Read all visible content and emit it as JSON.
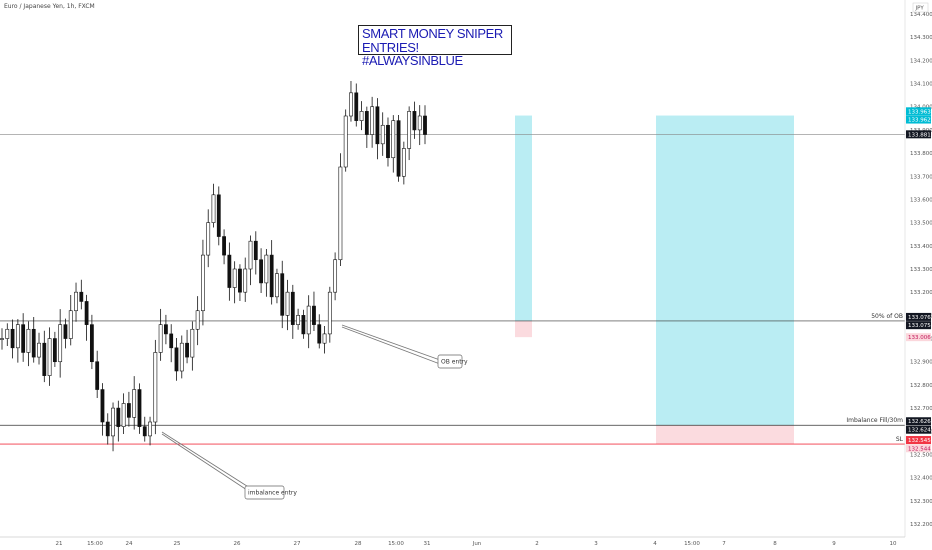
{
  "header": {
    "symbol": "Euro / Japanese Yen, 1h, FXCM"
  },
  "annotation": {
    "title_line1": "SMART MONEY SNIPER ENTRIES!",
    "title_line2": "#ALWAYSINBLUE"
  },
  "currency_label": "JPY",
  "chart_data": {
    "type": "candlestick",
    "ylim": [
      132.2,
      134.46
    ],
    "y_ticks": [
      "134.400",
      "134.300",
      "134.200",
      "134.100",
      "134.000",
      "133.900",
      "133.800",
      "133.700",
      "133.600",
      "133.500",
      "133.400",
      "133.300",
      "133.200",
      "133.100",
      "133.000",
      "132.900",
      "132.800",
      "132.700",
      "132.600",
      "132.500",
      "132.400",
      "132.300",
      "132.200"
    ],
    "x_ticks": [
      "21",
      "15:00",
      "24",
      "25",
      "26",
      "27",
      "28",
      "15:00",
      "31",
      "Jun",
      "2",
      "3",
      "4",
      "15:00",
      "7",
      "8",
      "9",
      "10"
    ],
    "price_labels": [
      "133.963",
      "133.962",
      "133.881",
      "133.076",
      "133.075",
      "133.006",
      "132.626",
      "132.624",
      "132.545",
      "132.544"
    ],
    "horizontal_lines": [
      {
        "price": 133.881,
        "label": ""
      },
      {
        "price": 133.076,
        "label": "50% of OB"
      },
      {
        "price": 132.626,
        "label": "Imbalance Fill/30m"
      },
      {
        "price": 132.545,
        "label": "SL"
      }
    ],
    "callouts": [
      "OB entry",
      "imbalance entry"
    ],
    "position_zones": [
      {
        "kind": "target",
        "color": "#b2ebf2",
        "top": 133.962,
        "bottom": 133.076
      },
      {
        "kind": "stop",
        "color": "#fbd7dc",
        "top": 133.076,
        "bottom": 133.006
      },
      {
        "kind": "target",
        "color": "#b2ebf2",
        "top": 133.962,
        "bottom": 132.626
      },
      {
        "kind": "stop",
        "color": "#fbd7dc",
        "top": 132.626,
        "bottom": 132.545
      }
    ],
    "series": [
      {
        "close_path": [
          133.0,
          133.04,
          132.96,
          133.06,
          132.94,
          133.04,
          132.92,
          132.98,
          132.84,
          133.0,
          132.9,
          133.06,
          133.0,
          133.12,
          133.2,
          133.16,
          133.06,
          132.9,
          132.78,
          132.64,
          132.58,
          132.7,
          132.62,
          132.72,
          132.66,
          132.78,
          132.62,
          132.58,
          132.64,
          132.94,
          133.06,
          133.02,
          132.96,
          132.86,
          132.98,
          132.92,
          133.04,
          133.12,
          133.36,
          133.5,
          133.62,
          133.44,
          133.36,
          133.22,
          133.3,
          133.2,
          133.3,
          133.42,
          133.34,
          133.24,
          133.36,
          133.18,
          133.28,
          133.1,
          133.2,
          133.06,
          133.1,
          133.02,
          133.14,
          133.06,
          132.98,
          133.02,
          133.2,
          133.34,
          133.74,
          133.96,
          134.06,
          133.94,
          133.98,
          133.88,
          134.0,
          133.84,
          133.92,
          133.78,
          133.94,
          133.7,
          133.82,
          133.98,
          133.9,
          133.96,
          133.88
        ]
      }
    ]
  }
}
